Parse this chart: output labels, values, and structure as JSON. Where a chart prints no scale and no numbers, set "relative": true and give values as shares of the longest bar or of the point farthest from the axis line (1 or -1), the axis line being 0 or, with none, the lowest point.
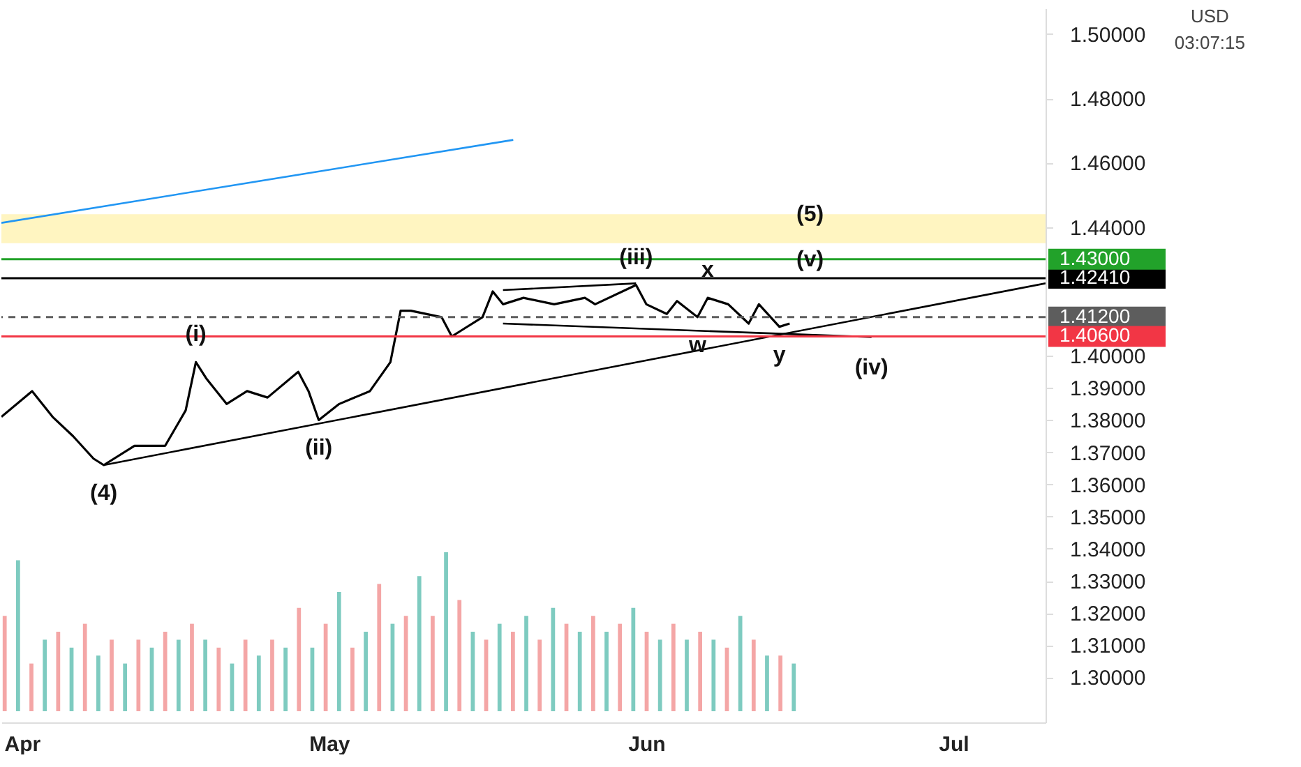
{
  "chart_data": [
    {
      "type": "line",
      "x": [
        "--03-30",
        "--04-02",
        "--04-04",
        "--04-06",
        "--04-08",
        "--04-09",
        "--04-12",
        "--04-15",
        "--04-17",
        "--04-18",
        "--04-19",
        "--04-21",
        "--04-23",
        "--04-25",
        "--04-28",
        "--04-29",
        "--04-30",
        "--05-02",
        "--05-05",
        "--05-07",
        "--05-08",
        "--05-09",
        "--05-12",
        "--05-13",
        "--05-14",
        "--05-16",
        "--05-17",
        "--05-18",
        "--05-20",
        "--05-23",
        "--05-26",
        "--05-27",
        "--05-31",
        "--06-01",
        "--06-03",
        "--06-04",
        "--06-06",
        "--06-07",
        "--06-09",
        "--06-11",
        "--06-12",
        "--06-14",
        "--06-15"
      ],
      "series": [
        {
          "type": "line",
          "color": "#000000",
          "values": [
            1.381,
            1.389,
            1.381,
            1.375,
            1.368,
            1.366,
            1.372,
            1.372,
            1.383,
            1.398,
            1.393,
            1.385,
            1.389,
            1.387,
            1.395,
            1.389,
            1.38,
            1.385,
            1.389,
            1.398,
            1.414,
            1.414,
            1.412,
            1.406,
            1.408,
            1.412,
            1.42,
            1.416,
            1.418,
            1.416,
            1.418,
            1.416,
            1.422,
            1.416,
            1.413,
            1.417,
            1.412,
            1.418,
            1.416,
            1.41,
            1.416,
            1.409,
            1.41
          ]
        },
        {
          "type": "line",
          "color": "#000000",
          "x": [
            "--04-09",
            "--07-10"
          ],
          "values": [
            1.366,
            1.4225
          ]
        },
        {
          "type": "line",
          "color": "#2196f3",
          "x": [
            "--03-30",
            "--05-19"
          ],
          "values": [
            1.4413,
            1.4671
          ]
        },
        {
          "type": "line",
          "color": "#000000",
          "x": [
            "--05-18",
            "--05-31"
          ],
          "values": [
            1.4204,
            1.4225
          ]
        },
        {
          "type": "line",
          "color": "#000000",
          "x": [
            "--05-18",
            "--06-23"
          ],
          "values": [
            1.41,
            1.4058
          ]
        }
      ],
      "xlim": [
        "--03-30",
        "--07-10"
      ],
      "xticks": [
        {
          "value": "--04-01",
          "label": "Apr"
        },
        {
          "value": "--05-01",
          "label": "May"
        },
        {
          "value": "--06-01",
          "label": "Jun"
        },
        {
          "value": "--07-01",
          "label": "Jul"
        }
      ],
      "ylim": [
        1.286,
        1.508
      ],
      "yticks": [
        {
          "value": 1.5,
          "label": "1.50000"
        },
        {
          "value": 1.48,
          "label": "1.48000"
        },
        {
          "value": 1.46,
          "label": "1.46000"
        },
        {
          "value": 1.44,
          "label": "1.44000"
        },
        {
          "value": 1.4,
          "label": "1.40000"
        },
        {
          "value": 1.39,
          "label": "1.39000"
        },
        {
          "value": 1.38,
          "label": "1.38000"
        },
        {
          "value": 1.37,
          "label": "1.37000"
        },
        {
          "value": 1.36,
          "label": "1.36000"
        },
        {
          "value": 1.35,
          "label": "1.35000"
        },
        {
          "value": 1.34,
          "label": "1.34000"
        },
        {
          "value": 1.33,
          "label": "1.33000"
        },
        {
          "value": 1.32,
          "label": "1.32000"
        },
        {
          "value": 1.31,
          "label": "1.31000"
        },
        {
          "value": 1.3,
          "label": "1.30000"
        }
      ],
      "bands": [
        {
          "axis": "y",
          "from": 1.435,
          "to": 1.444,
          "color": "#fff1a6"
        }
      ],
      "ref_lines": [
        {
          "axis": "y",
          "value": 1.4241,
          "label": "1.42410",
          "color": "#000000"
        },
        {
          "axis": "y",
          "value": 1.43,
          "label": "1.43000",
          "color": "#22a22a"
        },
        {
          "axis": "y",
          "value": 1.412,
          "label": "1.41200",
          "color": "#5d5d5d",
          "line_style": "dashed"
        },
        {
          "axis": "y",
          "value": 1.406,
          "label": "1.40600",
          "color": "#f23645"
        }
      ],
      "annotations": [
        "USD",
        "03:07:15",
        {
          "text": "(i)",
          "x": "--04-18",
          "y": 1.398
        },
        {
          "text": "(ii)",
          "x": "--04-30",
          "y": 1.38
        },
        {
          "text": "(iii)",
          "x": "--05-31",
          "y": 1.422
        },
        {
          "text": "(iv)",
          "x": "--06-23",
          "y": 1.4058
        },
        {
          "text": "(v)",
          "x": "--06-17",
          "y": 1.43
        },
        {
          "text": "(5)",
          "x": "--06-17",
          "y": 1.444
        },
        {
          "text": "(4)",
          "x": "--04-09",
          "y": 1.366
        },
        {
          "text": "w",
          "x": "--06-06",
          "y": 1.412
        },
        {
          "text": "x",
          "x": "--06-07",
          "y": 1.418
        },
        {
          "text": "y",
          "x": "--06-14",
          "y": 1.409
        }
      ],
      "grid": false,
      "tick_labels": "xy"
    },
    {
      "type": "bar",
      "relative": true,
      "tick_labels": false,
      "categories": [
        null,
        null,
        null,
        null,
        null,
        null,
        null,
        null,
        null,
        null,
        null,
        null,
        null,
        null,
        null,
        null,
        null,
        null,
        null,
        null,
        null,
        null,
        null,
        null,
        null,
        null,
        null,
        null,
        null,
        null,
        null,
        null,
        null,
        null,
        null,
        null,
        null,
        null,
        null,
        null,
        null,
        null,
        null,
        null,
        null,
        null,
        null,
        null,
        null,
        null,
        null,
        null,
        null,
        null,
        null,
        null,
        null,
        null,
        null,
        null
      ],
      "values": [
        0.6,
        0.95,
        0.3,
        0.45,
        0.5,
        0.4,
        0.55,
        0.35,
        0.45,
        0.3,
        0.45,
        0.4,
        0.5,
        0.45,
        0.55,
        0.45,
        0.4,
        0.3,
        0.45,
        0.35,
        0.45,
        0.4,
        0.65,
        0.4,
        0.55,
        0.75,
        0.4,
        0.5,
        0.8,
        0.55,
        0.6,
        0.85,
        0.6,
        1,
        0.7,
        0.5,
        0.45,
        0.55,
        0.5,
        0.6,
        0.45,
        0.65,
        0.55,
        0.5,
        0.6,
        0.5,
        0.55,
        0.65,
        0.5,
        0.45,
        0.55,
        0.45,
        0.5,
        0.45,
        0.4,
        0.6,
        0.45,
        0.35,
        0.35,
        0.3
      ],
      "colors": [
        "#f4a6a6",
        "#7ecbc0",
        "#f4a6a6",
        "#7ecbc0",
        "#f4a6a6",
        "#7ecbc0",
        "#f4a6a6",
        "#7ecbc0",
        "#f4a6a6",
        "#7ecbc0",
        "#f4a6a6",
        "#7ecbc0",
        "#f4a6a6",
        "#7ecbc0",
        "#f4a6a6",
        "#7ecbc0",
        "#f4a6a6",
        "#7ecbc0",
        "#f4a6a6",
        "#7ecbc0",
        "#f4a6a6",
        "#7ecbc0",
        "#f4a6a6",
        "#7ecbc0",
        "#f4a6a6",
        "#7ecbc0",
        "#f4a6a6",
        "#7ecbc0",
        "#f4a6a6",
        "#7ecbc0",
        "#f4a6a6",
        "#7ecbc0",
        "#f4a6a6",
        "#7ecbc0",
        "#f4a6a6",
        "#7ecbc0",
        "#f4a6a6",
        "#7ecbc0",
        "#f4a6a6",
        "#7ecbc0",
        "#f4a6a6",
        "#7ecbc0",
        "#f4a6a6",
        "#7ecbc0",
        "#f4a6a6",
        "#7ecbc0",
        "#f4a6a6",
        "#7ecbc0",
        "#f4a6a6",
        "#7ecbc0",
        "#f4a6a6",
        "#7ecbc0",
        "#f4a6a6",
        "#7ecbc0",
        "#f4a6a6",
        "#7ecbc0",
        "#f4a6a6",
        "#7ecbc0",
        "#f4a6a6",
        "#7ecbc0"
      ]
    }
  ]
}
